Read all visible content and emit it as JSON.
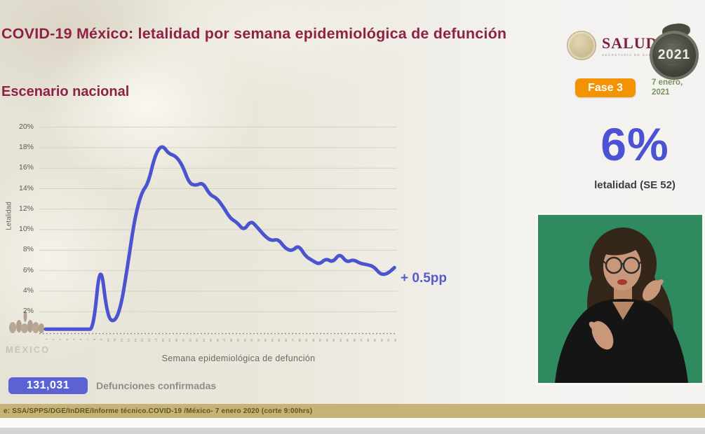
{
  "header": {
    "title": "COVID-19 México: letalidad por semana epidemiológica de defunción",
    "subtitle": "Escenario nacional",
    "salud_text": "SALUD",
    "salud_caption": "SECRETARÍA DE SALUD",
    "year_badge": "2021",
    "phase_badge": "Fase 3",
    "date": "7 enero, 2021"
  },
  "stat": {
    "value": "6%",
    "label": "letalidad (SE 52)"
  },
  "annotation": "+ 0.5pp",
  "deaths": {
    "count": "131,031",
    "label": "Defunciones confirmadas"
  },
  "watermark": {
    "text": "MÉXICO"
  },
  "footer": "e: SSA/SPPS/DGE/InDRE/Informe técnico.COVID-19 /México- 7 enero 2020 (corte 9:00hrs)",
  "colors": {
    "title_maroon": "#8e2144",
    "line_blue": "#4b54cf",
    "phase_orange": "#f39203",
    "date_green": "#76935c",
    "badge_blue": "#5a62d4",
    "footer_tan": "#c7b277",
    "video_green": "#2f8a60"
  },
  "chart_data": {
    "type": "line",
    "title": "",
    "xlabel": "Semana epidemiológica de defunción",
    "ylabel": "Letalidad",
    "legend": [],
    "grid": true,
    "ylim": [
      0,
      21
    ],
    "y_ticks": [
      "2%",
      "4%",
      "6%",
      "8%",
      "10%",
      "12%",
      "14%",
      "16%",
      "18%",
      "20%"
    ],
    "x": [
      1,
      2,
      3,
      4,
      5,
      6,
      7,
      8,
      9,
      10,
      11,
      12,
      13,
      14,
      15,
      16,
      17,
      18,
      19,
      20,
      21,
      22,
      23,
      24,
      25,
      26,
      27,
      28,
      29,
      30,
      31,
      32,
      33,
      34,
      35,
      36,
      37,
      38,
      39,
      40,
      41,
      42,
      43,
      44,
      45,
      46,
      47,
      48,
      49,
      50,
      51,
      52
    ],
    "values": [
      0.3,
      0.3,
      0.3,
      0.3,
      0.3,
      0.3,
      0.3,
      0.3,
      7.2,
      1.6,
      0.9,
      2.4,
      6.5,
      11.0,
      13.6,
      14.5,
      17.3,
      18.3,
      17.4,
      17.2,
      16.3,
      14.5,
      14.3,
      14.6,
      13.4,
      13.1,
      12.2,
      11.1,
      10.7,
      9.9,
      10.9,
      10.2,
      9.4,
      8.9,
      9.1,
      8.2,
      7.9,
      8.5,
      7.4,
      7.0,
      6.6,
      7.2,
      6.8,
      7.7,
      6.8,
      7.1,
      6.7,
      6.6,
      6.4,
      5.6,
      5.7,
      6.3
    ],
    "final_value_label": "6%",
    "final_week": "SE 52",
    "line_color": "#4b54cf"
  }
}
